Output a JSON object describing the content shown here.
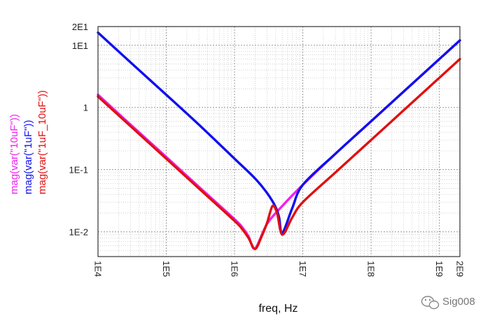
{
  "chart_data": {
    "type": "line",
    "xlabel": "freq, Hz",
    "x_scale": "log",
    "y_scale": "log",
    "xlim": [
      10000,
      2000000000
    ],
    "ylim": [
      0.004,
      20
    ],
    "x_ticks": [
      {
        "value": 10000,
        "label": "1E4"
      },
      {
        "value": 100000,
        "label": "1E5"
      },
      {
        "value": 1000000,
        "label": "1E6"
      },
      {
        "value": 10000000,
        "label": "1E7"
      },
      {
        "value": 100000000,
        "label": "1E8"
      },
      {
        "value": 1000000000,
        "label": "1E9"
      },
      {
        "value": 2000000000,
        "label": "2E9"
      }
    ],
    "y_ticks": [
      {
        "value": 20,
        "label": "2E1"
      },
      {
        "value": 10,
        "label": "1E1"
      },
      {
        "value": 1,
        "label": "1"
      },
      {
        "value": 0.1,
        "label": "1E-1"
      },
      {
        "value": 0.01,
        "label": "1E-2"
      }
    ],
    "grid": true,
    "legend_position": "left-vertical",
    "series": [
      {
        "name": "mag(var(\"10uF\"))",
        "color": "#ee22ee",
        "x": [
          10000,
          30000,
          100000,
          300000,
          1000000,
          1300000,
          1600000,
          2000000,
          3000000,
          5000000,
          10000000,
          30000000,
          100000000,
          300000000,
          1000000000,
          2000000000
        ],
        "y": [
          1.6,
          0.53,
          0.16,
          0.053,
          0.016,
          0.0118,
          0.0085,
          0.0054,
          0.0135,
          0.026,
          0.057,
          0.18,
          0.6,
          1.8,
          6.0,
          12.0
        ]
      },
      {
        "name": "mag(var(\"1uF\"))",
        "color": "#1010ee",
        "x": [
          10000,
          30000,
          100000,
          300000,
          1000000,
          2000000,
          3000000,
          4000000,
          4500000,
          5000000,
          7000000,
          10000000,
          30000000,
          100000000,
          300000000,
          1000000000,
          2000000000
        ],
        "y": [
          16.0,
          5.3,
          1.6,
          0.53,
          0.15,
          0.072,
          0.042,
          0.025,
          0.017,
          0.0095,
          0.024,
          0.057,
          0.18,
          0.6,
          1.8,
          6.0,
          12.0
        ]
      },
      {
        "name": "mag(var(\"1uF_10uF\"))",
        "color": "#e01010",
        "x": [
          10000,
          30000,
          100000,
          300000,
          1000000,
          1300000,
          1600000,
          2000000,
          2500000,
          3000000,
          3600000,
          4200000,
          5000000,
          7000000,
          10000000,
          30000000,
          100000000,
          300000000,
          1000000000,
          2000000000
        ],
        "y": [
          1.5,
          0.5,
          0.15,
          0.05,
          0.015,
          0.011,
          0.008,
          0.0053,
          0.0085,
          0.014,
          0.026,
          0.02,
          0.009,
          0.017,
          0.03,
          0.09,
          0.3,
          0.9,
          3.0,
          6.0
        ]
      }
    ]
  },
  "watermark": {
    "text": "Sig008",
    "icon": "wechat-icon"
  }
}
